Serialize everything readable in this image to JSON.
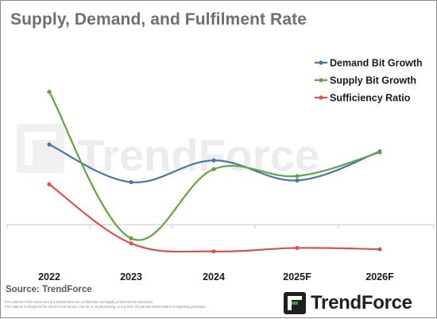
{
  "title": "Supply, Demand, and Fulfilment Rate",
  "source": "Source: TrendForce",
  "disclaimer_line1": "The contents of this report and any attachments are confidential and legally protected from disclosure.",
  "disclaimer_line2": "This material is strictly for the Client's internal use. Use for AI model training, or any form of external dissemination is expressly prohibited.",
  "logo": {
    "text": "TrendForce",
    "icon": "trendforce-logo-icon",
    "color_green": "#2e9e4a",
    "color_dark": "#1f1f1f"
  },
  "watermark": {
    "text": "TrendForce",
    "color": "#ececec"
  },
  "chart_data": {
    "type": "line",
    "categories": [
      "2022",
      "2023",
      "2024",
      "2025F",
      "2026F"
    ],
    "ylim": [
      -12,
      70
    ],
    "y_axis_visible": false,
    "baseline_value": 0,
    "grid": false,
    "legend_position": "top-right",
    "series": [
      {
        "name": "Demand Bit Growth",
        "color": "#4a73a8",
        "values": [
          36.8,
          19.5,
          29.5,
          20.3,
          33.6
        ]
      },
      {
        "name": "Supply Bit Growth",
        "color": "#5fa544",
        "values": [
          61.0,
          -6.3,
          25.5,
          22.3,
          33.2
        ]
      },
      {
        "name": "Sufficiency Ratio",
        "color": "#d9534f",
        "values": [
          18.5,
          -8.6,
          -12.3,
          -10.7,
          -11.3
        ]
      }
    ]
  }
}
